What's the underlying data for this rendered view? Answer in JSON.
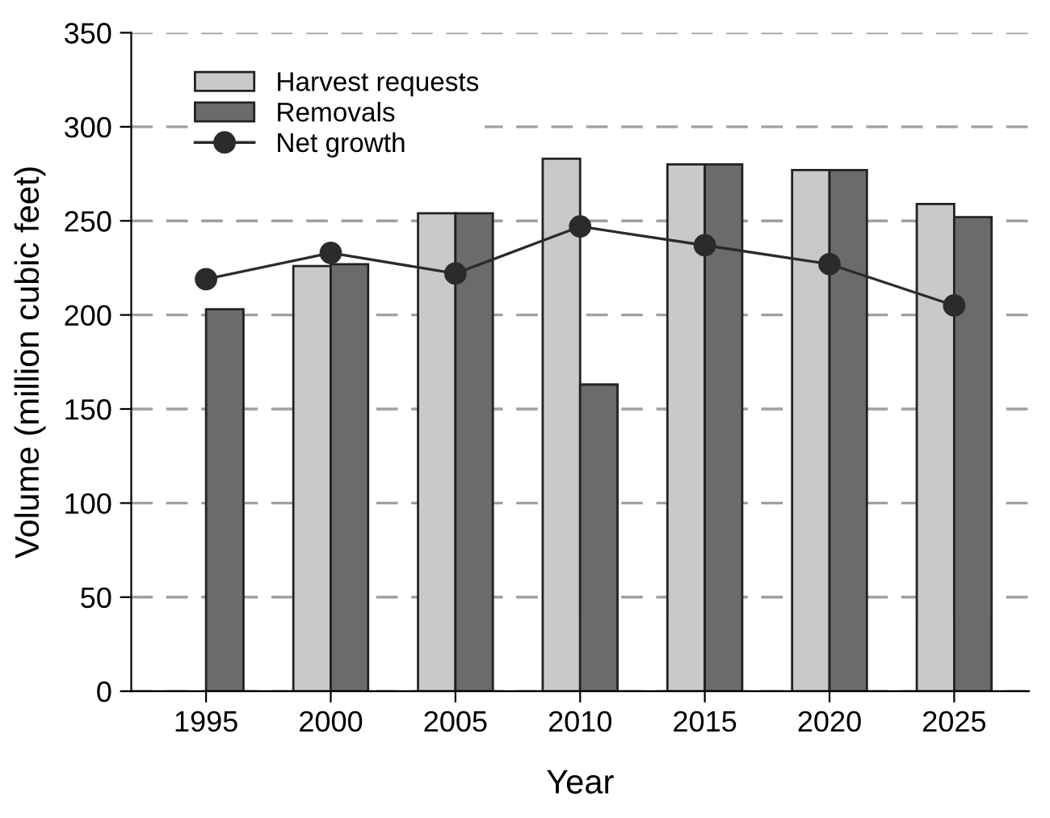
{
  "chart_data": {
    "type": "bar",
    "xlabel": "Year",
    "ylabel": "Volume (million cubic feet)",
    "categories": [
      "1995",
      "2000",
      "2005",
      "2010",
      "2015",
      "2020",
      "2025"
    ],
    "series": [
      {
        "name": "Harvest requests",
        "color": "#c8c9cb",
        "values": [
          null,
          226,
          254,
          283,
          280,
          277,
          259
        ]
      },
      {
        "name": "Removals",
        "color": "#6b6b6d",
        "values": [
          203,
          227,
          254,
          163,
          280,
          277,
          252
        ]
      },
      {
        "name": "Net growth",
        "type": "line",
        "color": "#2b2b2b",
        "marker": "circle",
        "values": [
          219,
          233,
          222,
          247,
          237,
          227,
          205
        ]
      }
    ],
    "ylim": [
      0,
      350
    ],
    "yticks": [
      0,
      50,
      100,
      150,
      200,
      250,
      300,
      350
    ],
    "grid": "y",
    "legend": "top left"
  }
}
